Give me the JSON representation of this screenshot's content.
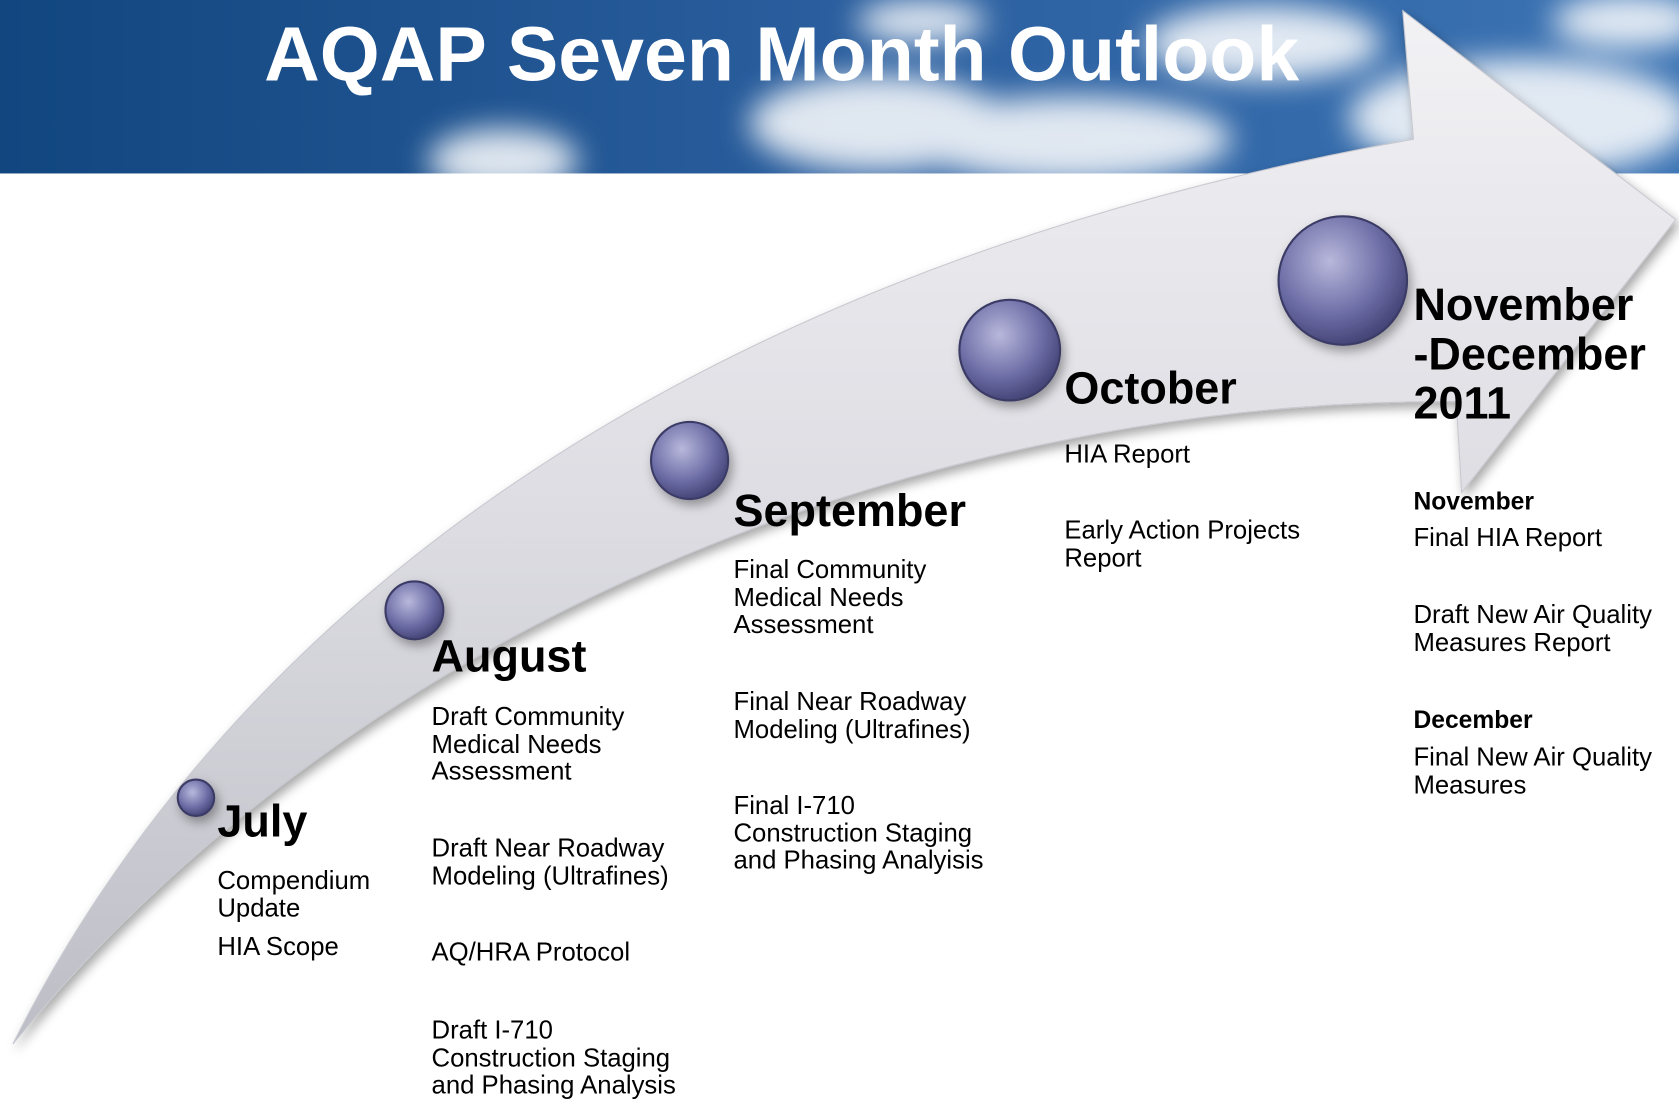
{
  "title": "AQAP Seven Month Outlook",
  "milestones": [
    {
      "month": "July",
      "items": [
        "Compendium\nUpdate",
        "HIA Scope"
      ]
    },
    {
      "month": "August",
      "items": [
        "Draft Community\nMedical Needs\nAssessment",
        "Draft Near Roadway\nModeling (Ultrafines)",
        "AQ/HRA Protocol",
        "Draft I-710\nConstruction Staging\nand Phasing Analysis"
      ]
    },
    {
      "month": "September",
      "items": [
        "Final Community\nMedical Needs\nAssessment",
        "Final Near Roadway\nModeling (Ultrafines)",
        "Final I-710\nConstruction Staging\nand Phasing Analyisis"
      ]
    },
    {
      "month": "October",
      "items": [
        "HIA Report",
        "Early Action Projects\nReport"
      ]
    },
    {
      "month": "November\n-December\n2011",
      "groups": [
        {
          "label": "November",
          "items": [
            "Final HIA Report",
            "Draft New Air Quality\nMeasures Report"
          ]
        },
        {
          "label": "December",
          "items": [
            "Final New Air Quality\nMeasures"
          ]
        }
      ]
    }
  ]
}
